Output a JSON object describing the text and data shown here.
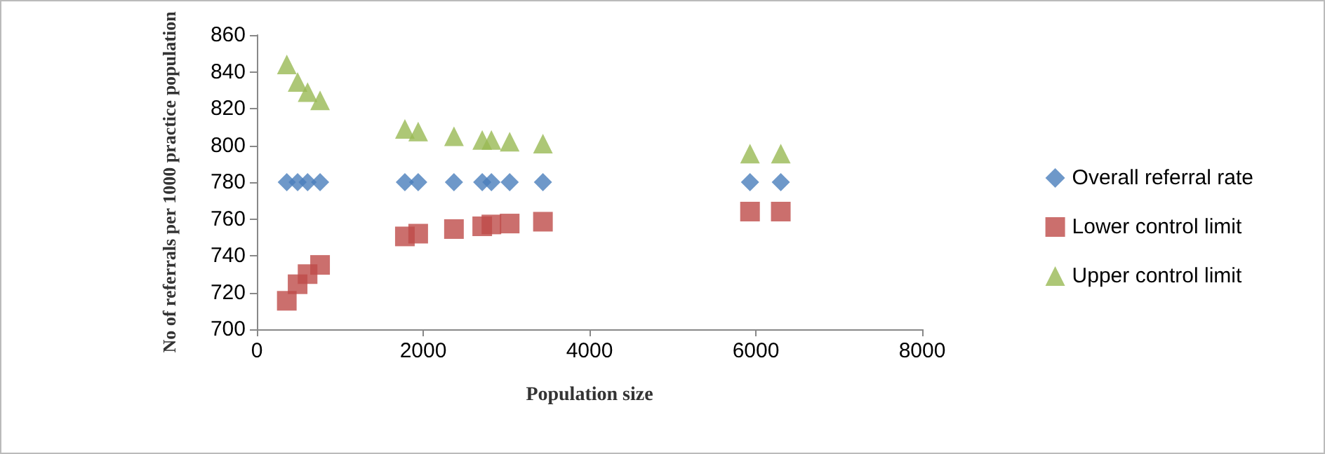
{
  "chart_data": {
    "type": "scatter",
    "xlabel": "Population size",
    "ylabel": "No of referrals per 1000 practice population",
    "x": [
      360,
      490,
      610,
      760,
      1780,
      1940,
      2370,
      2710,
      2820,
      3040,
      3440,
      5930,
      6300
    ],
    "series": [
      {
        "name": "Overall referral rate",
        "color": "#4a7ebb",
        "marker": "diamond",
        "values": [
          780,
          780,
          780,
          780,
          780,
          780,
          780,
          780,
          780,
          780,
          780,
          780,
          780
        ]
      },
      {
        "name": "Lower control limit",
        "color": "#be4b48",
        "marker": "square",
        "values": [
          715.5,
          724.5,
          730,
          735,
          750.5,
          752,
          754.5,
          756,
          757,
          757.5,
          758.5,
          764,
          764
        ]
      },
      {
        "name": "Upper control limit",
        "color": "#98b954",
        "marker": "triangle",
        "values": [
          844,
          834.5,
          829,
          824.5,
          809,
          807.5,
          805,
          803,
          803,
          802,
          801,
          795.5,
          795.5
        ]
      }
    ],
    "xlim": [
      0,
      8000
    ],
    "xticks": [
      0,
      2000,
      4000,
      6000,
      8000
    ],
    "ylim": [
      700,
      860
    ],
    "yticks": [
      700,
      720,
      740,
      760,
      780,
      800,
      820,
      840,
      860
    ],
    "grid": false,
    "legend": "right"
  }
}
